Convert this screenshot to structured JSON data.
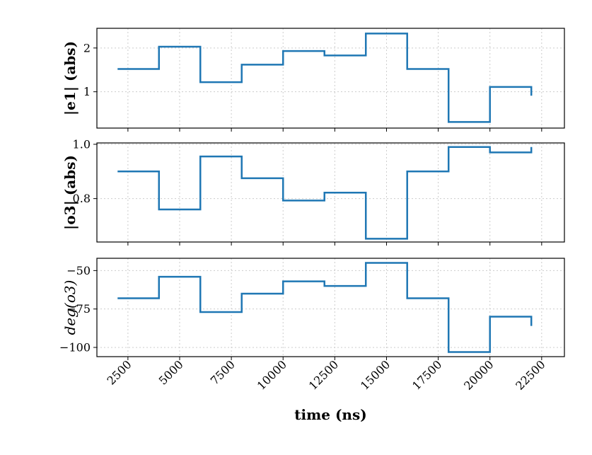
{
  "colors": {
    "series": "#1f77b4"
  },
  "chart_data": {
    "type": "line",
    "step": "post",
    "xlabel": "time (ns)",
    "xlim": [
      1000,
      23600
    ],
    "xticks": [
      2500,
      5000,
      7500,
      10000,
      12500,
      15000,
      17500,
      20000,
      22500
    ],
    "xtick_labels": [
      "2500",
      "5000",
      "7500",
      "10000",
      "12500",
      "15000",
      "17500",
      "20000",
      "22500"
    ],
    "x": [
      2000,
      4000,
      6000,
      8000,
      10000,
      12000,
      14000,
      16000,
      18000,
      20000,
      22000
    ],
    "grid": true,
    "panels": [
      {
        "ylabel": "|e1| (abs)",
        "ylim": [
          0.17,
          2.45
        ],
        "yticks": [
          1,
          2
        ],
        "ytick_labels": [
          "1",
          "2"
        ],
        "values": [
          1.52,
          2.03,
          1.22,
          1.62,
          1.93,
          1.83,
          2.33,
          1.52,
          0.31,
          1.11,
          0.91
        ]
      },
      {
        "ylabel": "|o3| (abs)",
        "ylim": [
          0.64,
          1.005
        ],
        "yticks": [
          0.8,
          1.0
        ],
        "ytick_labels": [
          "0.8",
          "1.0"
        ],
        "values": [
          0.9,
          0.76,
          0.955,
          0.875,
          0.793,
          0.822,
          0.652,
          0.9,
          0.99,
          0.97,
          0.99
        ]
      },
      {
        "ylabel": "deg(o3)",
        "ylim": [
          -106,
          -42
        ],
        "yticks": [
          -100,
          -75,
          -50
        ],
        "ytick_labels": [
          "−100",
          "−75",
          "−50"
        ],
        "values": [
          -68,
          -54,
          -77,
          -65,
          -57,
          -60,
          -45,
          -68,
          -103,
          -80,
          -86
        ]
      }
    ]
  }
}
